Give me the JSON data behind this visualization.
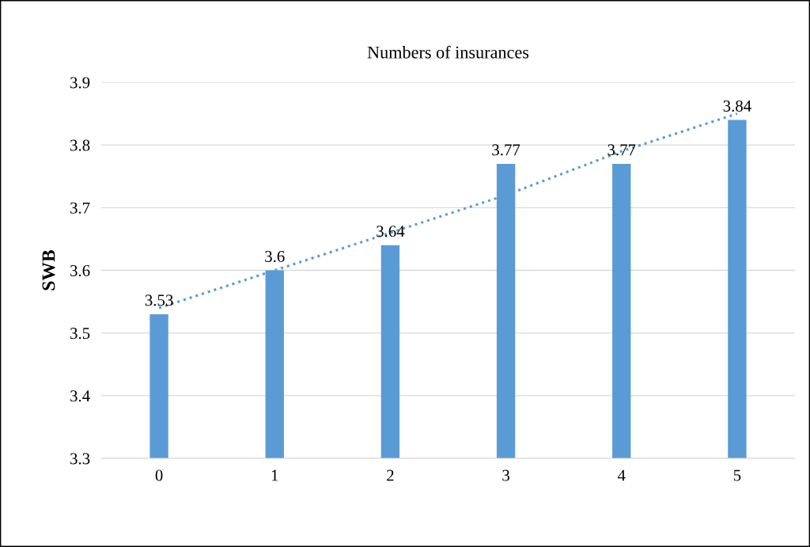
{
  "chart_data": {
    "type": "bar",
    "title": "Numbers of insurances",
    "ylabel": "SWB",
    "categories": [
      "0",
      "1",
      "2",
      "3",
      "4",
      "5"
    ],
    "series": [
      {
        "color": "#5b9bd5",
        "values": [
          3.53,
          3.6,
          3.64,
          3.77,
          3.77,
          3.84
        ],
        "value_labels": [
          "3.53",
          "3.6",
          "3.64",
          "3.77",
          "3.77",
          "3.84"
        ]
      },
      {
        "type": "line",
        "color": "#5b9bd5",
        "line_style": "dotted",
        "values": [
          3.54,
          3.6,
          3.66,
          3.72,
          3.79,
          3.85
        ]
      }
    ],
    "ylim": [
      3.3,
      3.9
    ],
    "yticks": [
      3.3,
      3.4,
      3.5,
      3.6,
      3.7,
      3.8,
      3.9
    ],
    "grid": "y"
  }
}
